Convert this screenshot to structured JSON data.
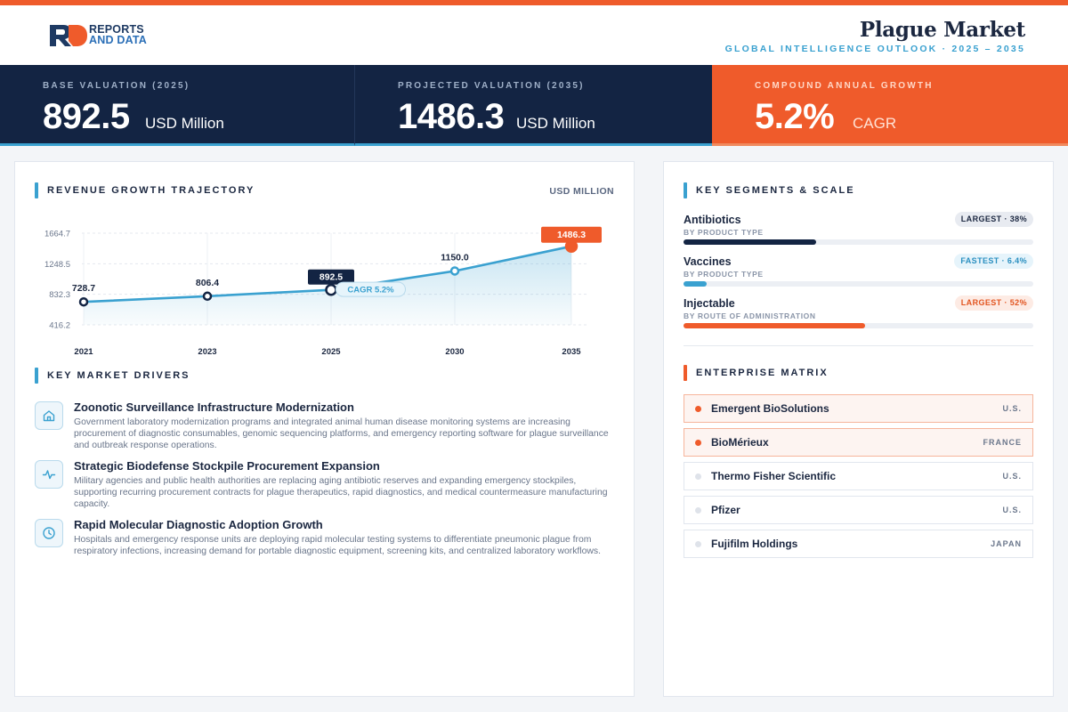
{
  "brand": {
    "line1": "REPORTS",
    "line2": "AND DATA",
    "colors": {
      "primary": "#1e3a63",
      "accent": "#ef5b2b",
      "secondary": "#3aa1d0"
    }
  },
  "header": {
    "title": "Plague Market",
    "subtitle": "GLOBAL INTELLIGENCE OUTLOOK  ·  2025 – 2035"
  },
  "kpis": [
    {
      "label": "BASE VALUATION (2025)",
      "value": "892.5",
      "unit": "USD Million"
    },
    {
      "label": "PROJECTED VALUATION (2035)",
      "value": "1486.3",
      "unit": "USD Million"
    },
    {
      "label": "COMPOUND ANNUAL GROWTH",
      "value": "5.2%",
      "unit": "CAGR"
    }
  ],
  "chart": {
    "title": "REVENUE GROWTH TRAJECTORY",
    "unit_label": "USD MILLION",
    "cagr_label": "CAGR 5.2%"
  },
  "chart_data": {
    "type": "area",
    "title": "REVENUE GROWTH TRAJECTORY",
    "ylabel": "USD MILLION",
    "x": [
      "2021",
      "2023",
      "2025",
      "2030",
      "2035"
    ],
    "values": [
      728.7,
      806.4,
      892.5,
      1150.0,
      1486.3
    ],
    "value_labels": [
      "728.7",
      "806.4",
      "892.5",
      "1150.0",
      "1486.3"
    ],
    "y_ticks": [
      "416.2",
      "832.3",
      "1248.5",
      "1664.7"
    ],
    "ylim": [
      416.2,
      1664.7
    ],
    "highlight_base": "2025",
    "highlight_projected": "2035",
    "annotation": "CAGR 5.2%",
    "grid": true,
    "colors": {
      "line": "#3aa1d0",
      "base": "#132443",
      "projected": "#ef5b2b"
    }
  },
  "drivers": {
    "title": "KEY MARKET DRIVERS",
    "items": [
      {
        "icon": "home-icon",
        "title": "Zoonotic Surveillance Infrastructure Modernization",
        "text": "Government laboratory modernization programs and integrated animal human disease monitoring systems are increasing procurement of diagnostic consumables, genomic sequencing platforms, and emergency reporting software for plague surveillance and outbreak response operations."
      },
      {
        "icon": "pulse-icon",
        "title": "Strategic Biodefense Stockpile Procurement Expansion",
        "text": "Military agencies and public health authorities are replacing aging antibiotic reserves and expanding emergency stockpiles, supporting recurring procurement contracts for plague therapeutics, rapid diagnostics, and medical countermeasure manufacturing capacity."
      },
      {
        "icon": "clock-icon",
        "title": "Rapid Molecular Diagnostic Adoption Growth",
        "text": "Hospitals and emergency response units are deploying rapid molecular testing systems to differentiate pneumonic plague from respiratory infections, increasing demand for portable diagnostic equipment, screening kits, and centralized laboratory workflows."
      }
    ]
  },
  "segments": {
    "title": "KEY SEGMENTS & SCALE",
    "items": [
      {
        "name": "Antibiotics",
        "category": "BY PRODUCT TYPE",
        "badge": "LARGEST · 38%",
        "share": 0.38,
        "bar_color": "#132443",
        "badge_bg": "#e8ebf1",
        "badge_fg": "#1b2740"
      },
      {
        "name": "Vaccines",
        "category": "BY PRODUCT TYPE",
        "badge": "FASTEST · 6.4%",
        "share": 0.064,
        "bar_color": "#3aa1d0",
        "badge_bg": "#e6f4fb",
        "badge_fg": "#2a8fc0"
      },
      {
        "name": "Injectable",
        "category": "BY ROUTE OF ADMINISTRATION",
        "badge": "LARGEST · 52%",
        "share": 0.52,
        "bar_color": "#ef5b2b",
        "badge_bg": "#fdebe4",
        "badge_fg": "#e2541f"
      }
    ]
  },
  "enterprise": {
    "title": "ENTERPRISE MATRIX",
    "rows": [
      {
        "name": "Emergent BioSolutions",
        "country": "U.S.",
        "highlight": true
      },
      {
        "name": "BioMérieux",
        "country": "FRANCE",
        "highlight": true
      },
      {
        "name": "Thermo Fisher Scientific",
        "country": "U.S.",
        "highlight": false
      },
      {
        "name": "Pfizer",
        "country": "U.S.",
        "highlight": false
      },
      {
        "name": "Fujifilm Holdings",
        "country": "JAPAN",
        "highlight": false
      }
    ]
  }
}
